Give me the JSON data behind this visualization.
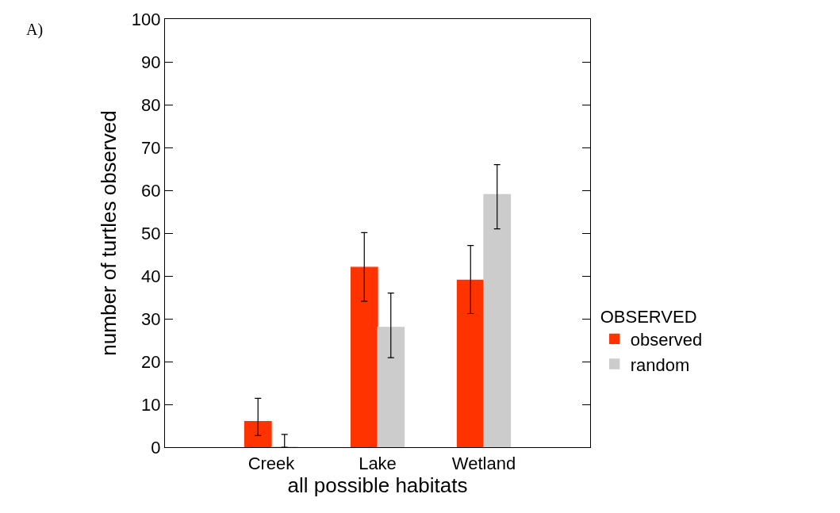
{
  "chart_data": {
    "type": "bar",
    "xlabel": "all possible habitats",
    "ylabel": "number of turtles observed",
    "legend_title": "OBSERVED",
    "annotations": [
      "A)"
    ],
    "categories": [
      "Creek",
      "Lake",
      "Wetland"
    ],
    "series": [
      {
        "name": "observed",
        "color": "#ff3300",
        "values": [
          6,
          42,
          39
        ],
        "errors": [
          [
            2.7,
            11.4
          ],
          [
            34.1,
            50.1
          ],
          [
            31.2,
            47.1
          ]
        ]
      },
      {
        "name": "random",
        "color": "#cccccc",
        "values": [
          0,
          28,
          59
        ],
        "errors": [
          [
            0,
            3
          ],
          [
            20.9,
            36
          ],
          [
            51,
            66
          ]
        ]
      }
    ],
    "ylim": [
      0,
      100
    ],
    "yticks": [
      0,
      10,
      20,
      30,
      40,
      50,
      60,
      70,
      80,
      90,
      100
    ],
    "grid": false,
    "legend": "right"
  }
}
